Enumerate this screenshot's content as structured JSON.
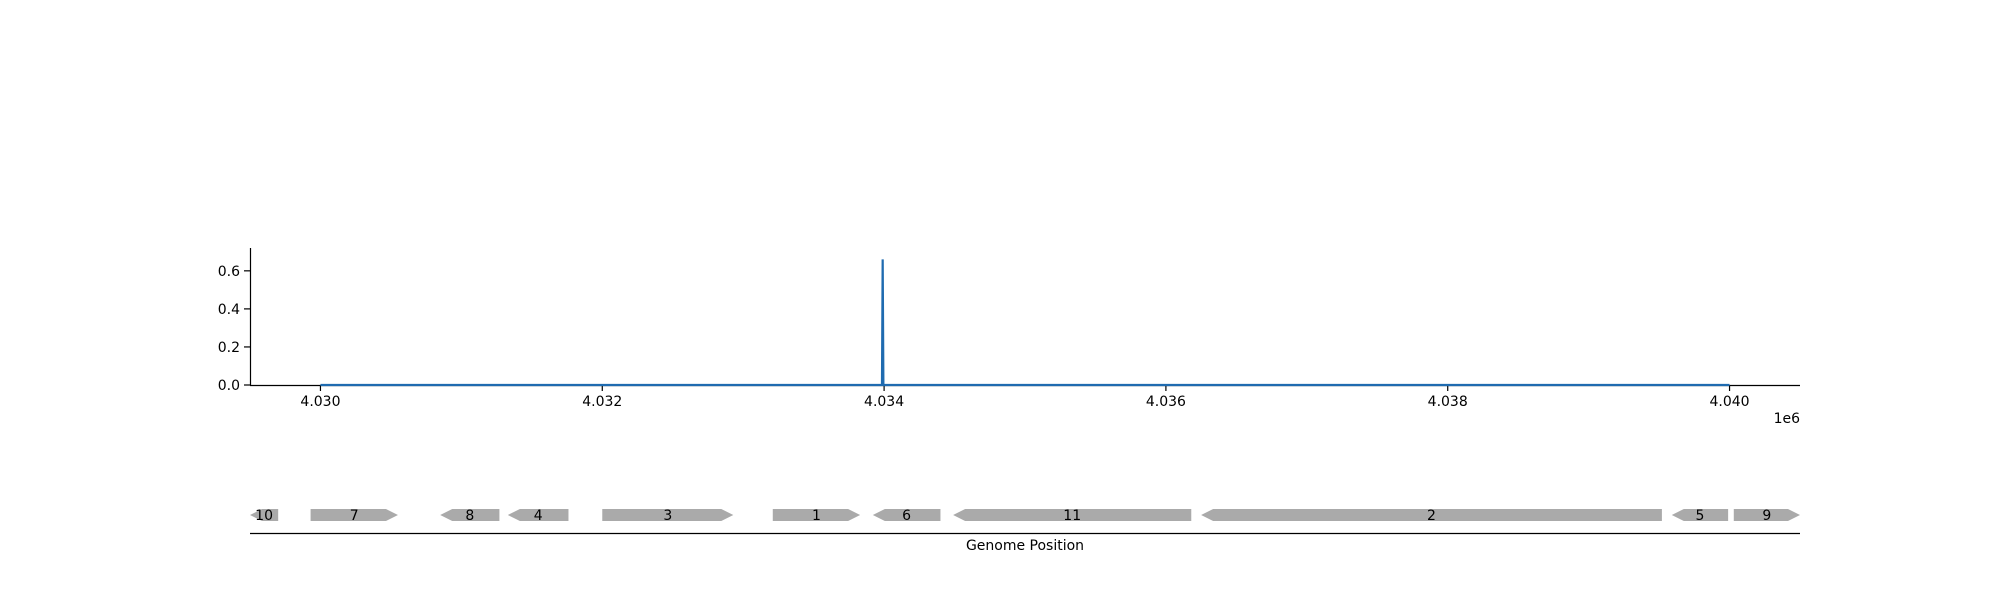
{
  "chart_data": [
    {
      "type": "line",
      "title": "",
      "xlabel": "",
      "ylabel": "",
      "x_offset_label": "1e6",
      "xlim": [
        4029500,
        4040500
      ],
      "ylim": [
        0,
        0.72
      ],
      "x_ticks": [
        4030000,
        4032000,
        4034000,
        4036000,
        4038000,
        4040000
      ],
      "x_tick_labels": [
        "4.030",
        "4.032",
        "4.034",
        "4.036",
        "4.038",
        "4.040"
      ],
      "y_ticks": [
        0.0,
        0.2,
        0.4,
        0.6
      ],
      "y_tick_labels": [
        "0.0",
        "0.2",
        "0.4",
        "0.6"
      ],
      "grid": false,
      "legend": "none",
      "color": "#1f6bb0",
      "series": [
        {
          "x": [
            4030000,
            4033985,
            4033990,
            4033995,
            4040000
          ],
          "y": [
            0.0,
            0.0,
            0.66,
            0.0,
            0.0
          ]
        }
      ]
    },
    {
      "type": "gene-track",
      "xlabel": "Genome Position",
      "xlim": [
        4029500,
        4040500
      ],
      "color": "#aaaaaa",
      "genes": [
        {
          "label": "10",
          "start": 4029500,
          "end": 4029700,
          "strand": "-"
        },
        {
          "label": "7",
          "start": 4029930,
          "end": 4030550,
          "strand": "+"
        },
        {
          "label": "8",
          "start": 4030850,
          "end": 4031270,
          "strand": "-"
        },
        {
          "label": "4",
          "start": 4031330,
          "end": 4031760,
          "strand": "-"
        },
        {
          "label": "3",
          "start": 4032000,
          "end": 4032930,
          "strand": "+"
        },
        {
          "label": "1",
          "start": 4033210,
          "end": 4033830,
          "strand": "+"
        },
        {
          "label": "6",
          "start": 4033920,
          "end": 4034400,
          "strand": "-"
        },
        {
          "label": "11",
          "start": 4034490,
          "end": 4036180,
          "strand": "-"
        },
        {
          "label": "2",
          "start": 4036250,
          "end": 4039520,
          "strand": "-"
        },
        {
          "label": "5",
          "start": 4039590,
          "end": 4039990,
          "strand": "-"
        },
        {
          "label": "9",
          "start": 4040030,
          "end": 4040500,
          "strand": "+"
        }
      ]
    }
  ]
}
